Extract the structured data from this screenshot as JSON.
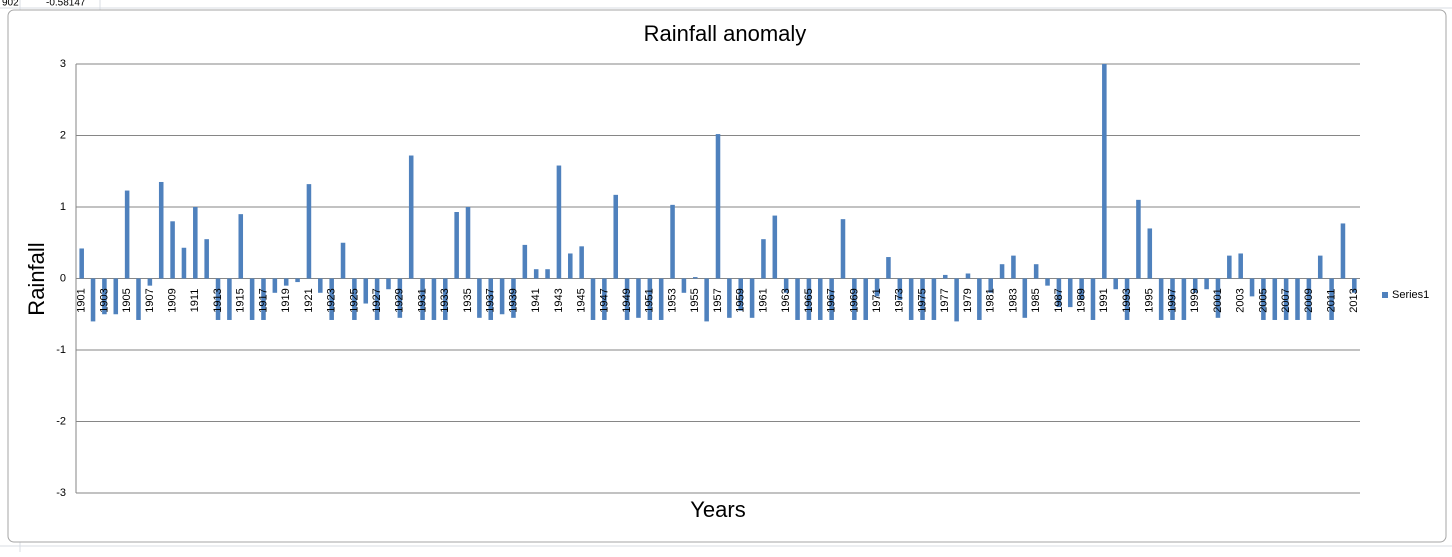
{
  "sheet": {
    "cells": [
      "902",
      "-0.58147"
    ]
  },
  "chart_data": {
    "type": "bar",
    "title": "Rainfall anomaly",
    "x_label": "Years",
    "y_label": "Rainfall",
    "categories": [
      "1901",
      null,
      "1903",
      null,
      "1905",
      null,
      "1907",
      null,
      "1909",
      null,
      "1911",
      null,
      "1913",
      null,
      "1915",
      null,
      "1917",
      null,
      "1919",
      null,
      "1921",
      null,
      "1923",
      null,
      "1925",
      null,
      "1927",
      null,
      "1929",
      null,
      "1931",
      null,
      "1933",
      null,
      "1935",
      null,
      "1937",
      null,
      "1939",
      null,
      "1941",
      null,
      "1943",
      null,
      "1945",
      null,
      "1947",
      null,
      "1949",
      null,
      "1951",
      null,
      "1953",
      null,
      "1955",
      null,
      "1957",
      null,
      "1959",
      null,
      "1961",
      null,
      "1963",
      null,
      "1965",
      null,
      "1967",
      null,
      "1969",
      null,
      "1971",
      null,
      "1973",
      null,
      "1975",
      null,
      "1977",
      null,
      "1979",
      null,
      "1981",
      null,
      "1983",
      null,
      "1985",
      null,
      "1987",
      null,
      "1989",
      null,
      "1991",
      null,
      "1993",
      null,
      "1995",
      null,
      "1997",
      null,
      "1999",
      null,
      "2001",
      null,
      "2003",
      null,
      "2005",
      null,
      "2007",
      null,
      "2009",
      null,
      "2011",
      null,
      "2013"
    ],
    "series": [
      {
        "name": "Series1",
        "color": "#4f81bd",
        "values": [
          0.42,
          -0.6,
          -0.5,
          -0.5,
          1.23,
          -0.58,
          -0.1,
          1.35,
          0.8,
          0.43,
          1.0,
          0.55,
          -0.58,
          -0.58,
          0.9,
          -0.58,
          -0.58,
          -0.2,
          -0.1,
          -0.05,
          1.32,
          -0.2,
          -0.58,
          0.5,
          -0.58,
          -0.35,
          -0.58,
          -0.15,
          -0.55,
          1.72,
          -0.58,
          -0.58,
          -0.58,
          0.93,
          1.0,
          -0.55,
          -0.58,
          -0.5,
          -0.55,
          0.47,
          0.13,
          0.13,
          1.58,
          0.35,
          0.45,
          -0.58,
          -0.58,
          1.17,
          -0.58,
          -0.55,
          -0.58,
          -0.58,
          1.03,
          -0.2,
          0.02,
          -0.6,
          2.02,
          -0.55,
          -0.45,
          -0.55,
          0.55,
          0.88,
          -0.2,
          -0.58,
          -0.58,
          -0.58,
          -0.58,
          0.83,
          -0.58,
          -0.58,
          -0.25,
          0.3,
          -0.3,
          -0.58,
          -0.58,
          -0.58,
          0.05,
          -0.6,
          0.07,
          -0.58,
          -0.2,
          0.2,
          0.32,
          -0.55,
          0.2,
          -0.1,
          -0.4,
          -0.4,
          -0.3,
          -0.58,
          3.0,
          -0.15,
          -0.58,
          1.1,
          0.7,
          -0.58,
          -0.58,
          -0.58,
          -0.2,
          -0.15,
          -0.55,
          0.32,
          0.35,
          -0.25,
          -0.58,
          -0.58,
          -0.58,
          -0.58,
          -0.58,
          0.32,
          -0.58,
          0.77,
          -0.2
        ]
      }
    ],
    "ylim": [
      -3,
      3
    ],
    "yticks": [
      -3,
      -2,
      -1,
      0,
      1,
      2,
      3
    ],
    "grid": true,
    "legend": "right"
  }
}
